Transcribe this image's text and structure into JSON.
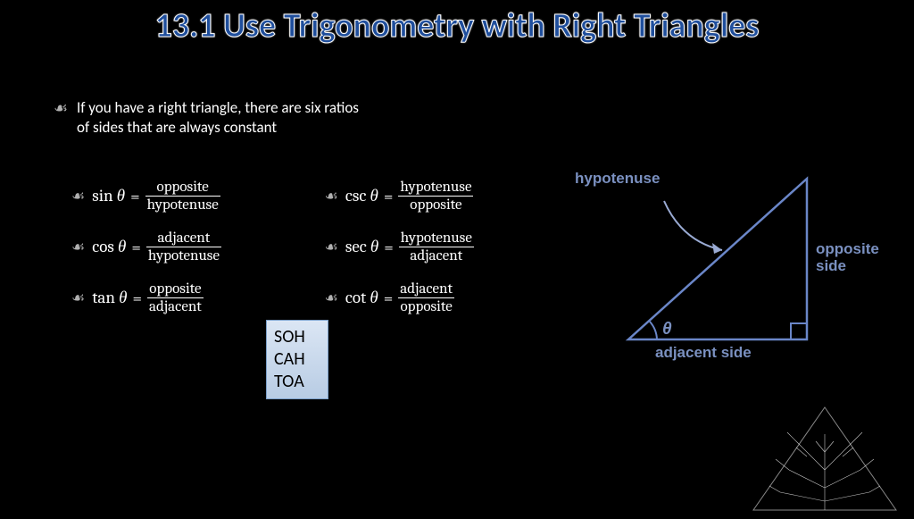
{
  "title": "13.1 Use Trigonometry with Right Triangles",
  "intro": "If you have a right triangle, there are six ratios of sides that are always constant",
  "formulas_left": [
    {
      "fn": "sin",
      "num": "opposite",
      "den": "hypotenuse"
    },
    {
      "fn": "cos",
      "num": "adjacent",
      "den": "hypotenuse"
    },
    {
      "fn": "tan",
      "num": "opposite",
      "den": "adjacent"
    }
  ],
  "formulas_right": [
    {
      "fn": "csc",
      "num": "hypotenuse",
      "den": "opposite"
    },
    {
      "fn": "sec",
      "num": "hypotenuse",
      "den": "adjacent"
    },
    {
      "fn": "cot",
      "num": "adjacent",
      "den": "opposite"
    }
  ],
  "mnemonic": [
    "SOH",
    "CAH",
    "TOA"
  ],
  "labels": {
    "hypotenuse": "hypotenuse",
    "opposite": "opposite side",
    "adjacent": "adjacent side",
    "theta": "θ"
  },
  "colors": {
    "bg": "#000000",
    "title": "#1f4e9c",
    "stroke": "#6a86c8",
    "label": "#7a90c0",
    "mnemonic_bg": "#b8cce4"
  }
}
